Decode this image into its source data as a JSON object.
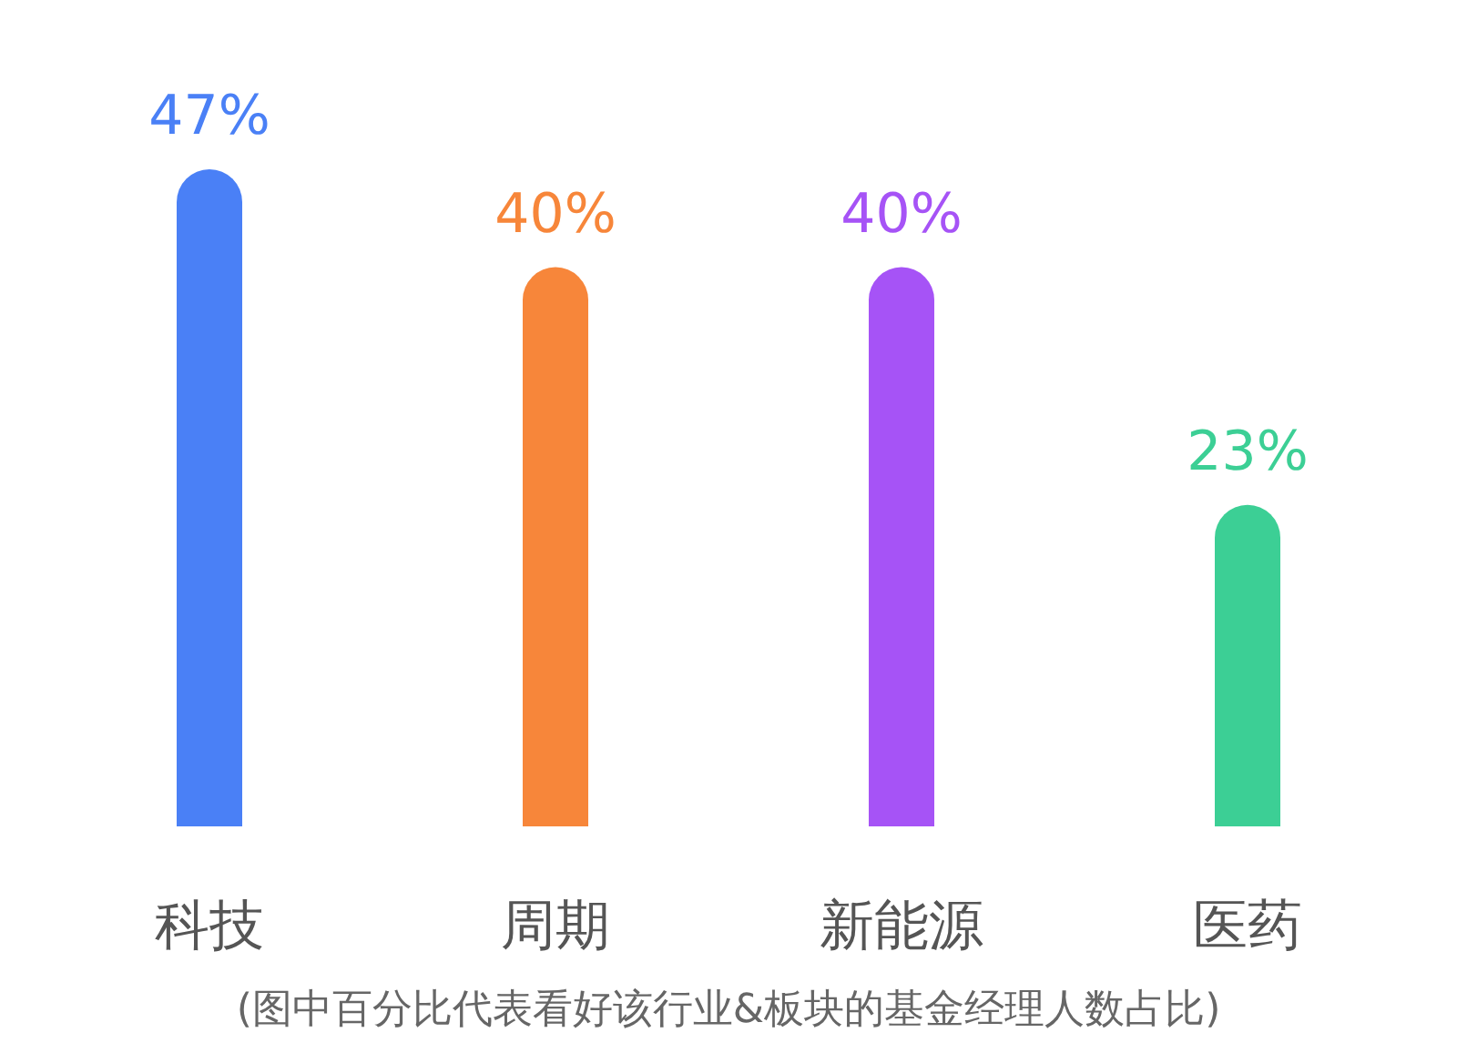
{
  "chart_data": {
    "type": "bar",
    "categories": [
      "科技",
      "周期",
      "新能源",
      "医药"
    ],
    "values": [
      47,
      40,
      40,
      23
    ],
    "colors": [
      "#4a80f6",
      "#f7863a",
      "#a653f6",
      "#3ccf95"
    ],
    "value_labels": [
      "47%",
      "40%",
      "40%",
      "23%"
    ],
    "annotations": [
      "(图中百分比代表看好该行业&板块的基金经理人数占比)"
    ]
  }
}
